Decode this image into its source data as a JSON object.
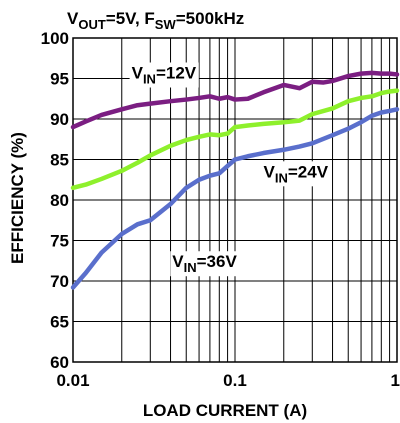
{
  "chart_data": {
    "type": "line",
    "title": {
      "parts": [
        {
          "text": "V",
          "sub": false
        },
        {
          "text": "OUT",
          "sub": true
        },
        {
          "text": "=5V, F",
          "sub": false
        },
        {
          "text": "SW",
          "sub": true
        },
        {
          "text": "=500kHz",
          "sub": false
        }
      ]
    },
    "xlabel": "LOAD CURRENT (A)",
    "ylabel": "EFFICIENCY (%)",
    "xscale": "log",
    "xlim": [
      0.01,
      1
    ],
    "ylim": [
      60,
      100
    ],
    "x_tick_labels": [
      "0.01",
      "0.1",
      "1"
    ],
    "x_tick_values": [
      0.01,
      0.1,
      1
    ],
    "y_tick_values": [
      60,
      65,
      70,
      75,
      80,
      85,
      90,
      95,
      100
    ],
    "grid": true,
    "series": [
      {
        "label_parts": [
          {
            "text": "V",
            "sub": false
          },
          {
            "text": "IN",
            "sub": true
          },
          {
            "text": "=12V",
            "sub": false
          }
        ],
        "label_anchor": {
          "x": 0.023,
          "y": 95
        },
        "color": "#7b1e82",
        "points": [
          [
            0.01,
            89.0
          ],
          [
            0.012,
            89.7
          ],
          [
            0.015,
            90.5
          ],
          [
            0.02,
            91.2
          ],
          [
            0.025,
            91.7
          ],
          [
            0.03,
            91.9
          ],
          [
            0.04,
            92.2
          ],
          [
            0.05,
            92.4
          ],
          [
            0.06,
            92.6
          ],
          [
            0.07,
            92.8
          ],
          [
            0.08,
            92.5
          ],
          [
            0.09,
            92.7
          ],
          [
            0.1,
            92.4
          ],
          [
            0.12,
            92.5
          ],
          [
            0.15,
            93.3
          ],
          [
            0.2,
            94.2
          ],
          [
            0.25,
            93.8
          ],
          [
            0.3,
            94.6
          ],
          [
            0.35,
            94.5
          ],
          [
            0.4,
            94.7
          ],
          [
            0.5,
            95.3
          ],
          [
            0.6,
            95.6
          ],
          [
            0.7,
            95.7
          ],
          [
            0.8,
            95.6
          ],
          [
            0.9,
            95.6
          ],
          [
            1.0,
            95.5
          ]
        ]
      },
      {
        "label_parts": [
          {
            "text": "V",
            "sub": false
          },
          {
            "text": "IN",
            "sub": true
          },
          {
            "text": "=24V",
            "sub": false
          }
        ],
        "label_anchor": {
          "x": 0.15,
          "y": 82.8
        },
        "color": "#8ef02c",
        "points": [
          [
            0.01,
            81.5
          ],
          [
            0.012,
            81.9
          ],
          [
            0.015,
            82.6
          ],
          [
            0.02,
            83.6
          ],
          [
            0.025,
            84.6
          ],
          [
            0.03,
            85.5
          ],
          [
            0.04,
            86.7
          ],
          [
            0.05,
            87.4
          ],
          [
            0.06,
            87.8
          ],
          [
            0.07,
            88.1
          ],
          [
            0.08,
            88.0
          ],
          [
            0.09,
            88.2
          ],
          [
            0.1,
            89.0
          ],
          [
            0.12,
            89.2
          ],
          [
            0.15,
            89.4
          ],
          [
            0.2,
            89.6
          ],
          [
            0.25,
            89.8
          ],
          [
            0.3,
            90.6
          ],
          [
            0.4,
            91.3
          ],
          [
            0.5,
            92.2
          ],
          [
            0.6,
            92.6
          ],
          [
            0.7,
            92.8
          ],
          [
            0.8,
            93.2
          ],
          [
            0.9,
            93.4
          ],
          [
            1.0,
            93.5
          ]
        ]
      },
      {
        "label_parts": [
          {
            "text": "V",
            "sub": false
          },
          {
            "text": "IN",
            "sub": true
          },
          {
            "text": "=36V",
            "sub": false
          }
        ],
        "label_anchor": {
          "x": 0.041,
          "y": 71.7
        },
        "color": "#5a6fcc",
        "points": [
          [
            0.01,
            69.2
          ],
          [
            0.012,
            71.0
          ],
          [
            0.015,
            73.5
          ],
          [
            0.02,
            75.8
          ],
          [
            0.025,
            77.0
          ],
          [
            0.03,
            77.5
          ],
          [
            0.04,
            79.5
          ],
          [
            0.05,
            81.5
          ],
          [
            0.06,
            82.5
          ],
          [
            0.07,
            83.0
          ],
          [
            0.08,
            83.3
          ],
          [
            0.09,
            84.2
          ],
          [
            0.1,
            85.0
          ],
          [
            0.12,
            85.4
          ],
          [
            0.15,
            85.8
          ],
          [
            0.2,
            86.2
          ],
          [
            0.25,
            86.6
          ],
          [
            0.3,
            87.0
          ],
          [
            0.4,
            88.0
          ],
          [
            0.5,
            88.8
          ],
          [
            0.6,
            89.6
          ],
          [
            0.7,
            90.4
          ],
          [
            0.8,
            90.8
          ],
          [
            0.9,
            91.0
          ],
          [
            1.0,
            91.2
          ]
        ]
      }
    ]
  }
}
